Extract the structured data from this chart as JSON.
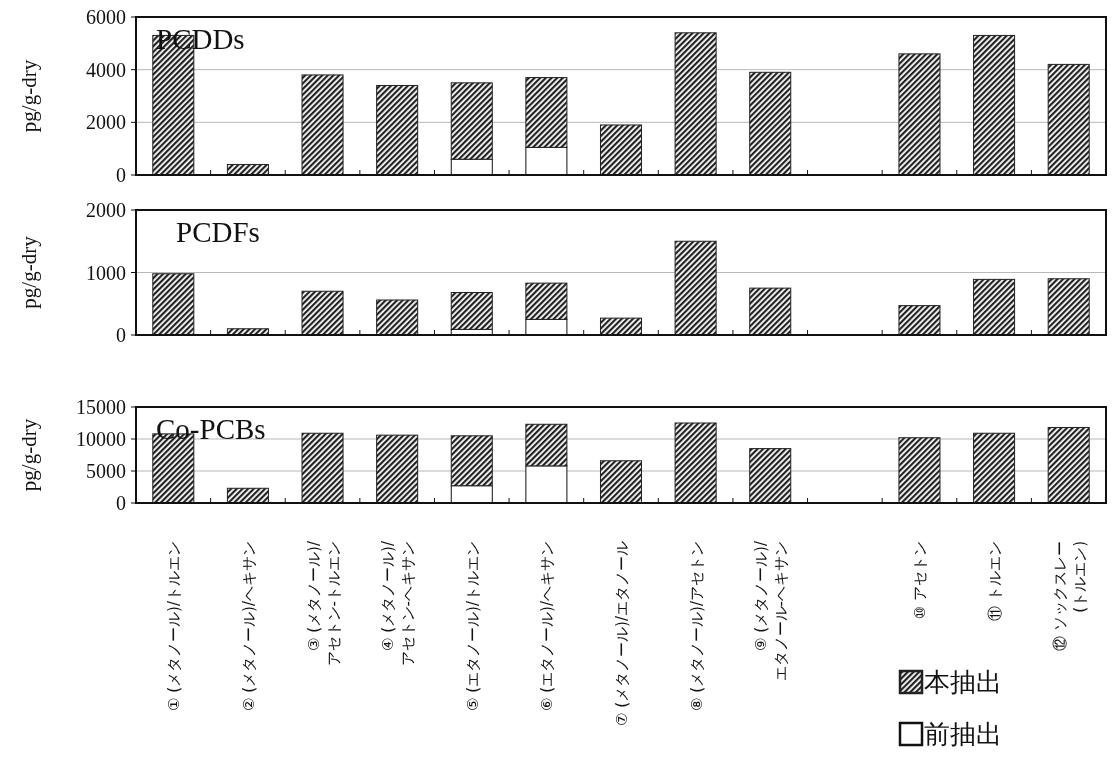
{
  "chart_data": [
    {
      "type": "bar",
      "title": "PCDDs",
      "ylabel": "pg/g-dry",
      "stacked": true,
      "categories": [
        null,
        null,
        null,
        null,
        null,
        null,
        null,
        null,
        null,
        null,
        null,
        null,
        null
      ],
      "series": [
        {
          "color": "#ffffff",
          "values": [
            null,
            null,
            null,
            null,
            600,
            1050,
            null,
            null,
            null,
            null,
            null,
            null,
            null
          ]
        },
        {
          "color": "#222222",
          "values": [
            5300,
            400,
            3800,
            3400,
            2900,
            2650,
            1900,
            5400,
            3900,
            null,
            4600,
            5300,
            4200
          ]
        }
      ],
      "ylim": [
        0,
        6000
      ],
      "yticks": [
        0,
        2000,
        4000,
        6000
      ],
      "grid": "y",
      "tick_labels": "y"
    },
    {
      "type": "bar",
      "title": "PCDFs",
      "ylabel": "pg/g-dry",
      "stacked": true,
      "categories": [
        null,
        null,
        null,
        null,
        null,
        null,
        null,
        null,
        null,
        null,
        null,
        null,
        null
      ],
      "series": [
        {
          "color": "#ffffff",
          "values": [
            null,
            null,
            null,
            null,
            90,
            250,
            null,
            null,
            null,
            null,
            null,
            null,
            null
          ]
        },
        {
          "color": "#222222",
          "values": [
            980,
            100,
            700,
            560,
            590,
            580,
            270,
            1500,
            750,
            null,
            470,
            890,
            900
          ]
        }
      ],
      "ylim": [
        0,
        2000
      ],
      "yticks": [
        0,
        1000,
        2000
      ],
      "grid": "y",
      "tick_labels": "y"
    },
    {
      "type": "bar",
      "title": "Co-PCBs",
      "ylabel": "pg/g-dry",
      "stacked": true,
      "categories": [
        "① (メタノール)/トルエン",
        "② (メタノール)/ヘキサン",
        "③ (メタノール)/\nアセトン-トルエン",
        "④ (メタノール)/\nアセトン-ヘキサン",
        "⑤ (エタノール)/トルエン",
        "⑥ (エタノール)/ヘキサン",
        "⑦ (メタノール)/エタノール",
        "⑧ (メタノール)/アセトン",
        "⑨ (メタノール)/\nエタノール-ヘキサン",
        null,
        "⑩ アセトン",
        "⑪ トルエン",
        "⑫ ソックスレー\n(トルエン)"
      ],
      "series": [
        {
          "name": "前抽出",
          "color": "#ffffff",
          "values": [
            null,
            null,
            null,
            null,
            2700,
            5800,
            null,
            null,
            null,
            null,
            null,
            null,
            null
          ]
        },
        {
          "name": "本抽出",
          "color": "#222222",
          "values": [
            10800,
            2300,
            10900,
            10600,
            7800,
            6500,
            6600,
            12500,
            8500,
            null,
            10200,
            10900,
            11800
          ]
        }
      ],
      "ylim": [
        0,
        15000
      ],
      "yticks": [
        0,
        5000,
        10000,
        15000
      ],
      "grid": "y",
      "legend": "bottom right"
    }
  ]
}
